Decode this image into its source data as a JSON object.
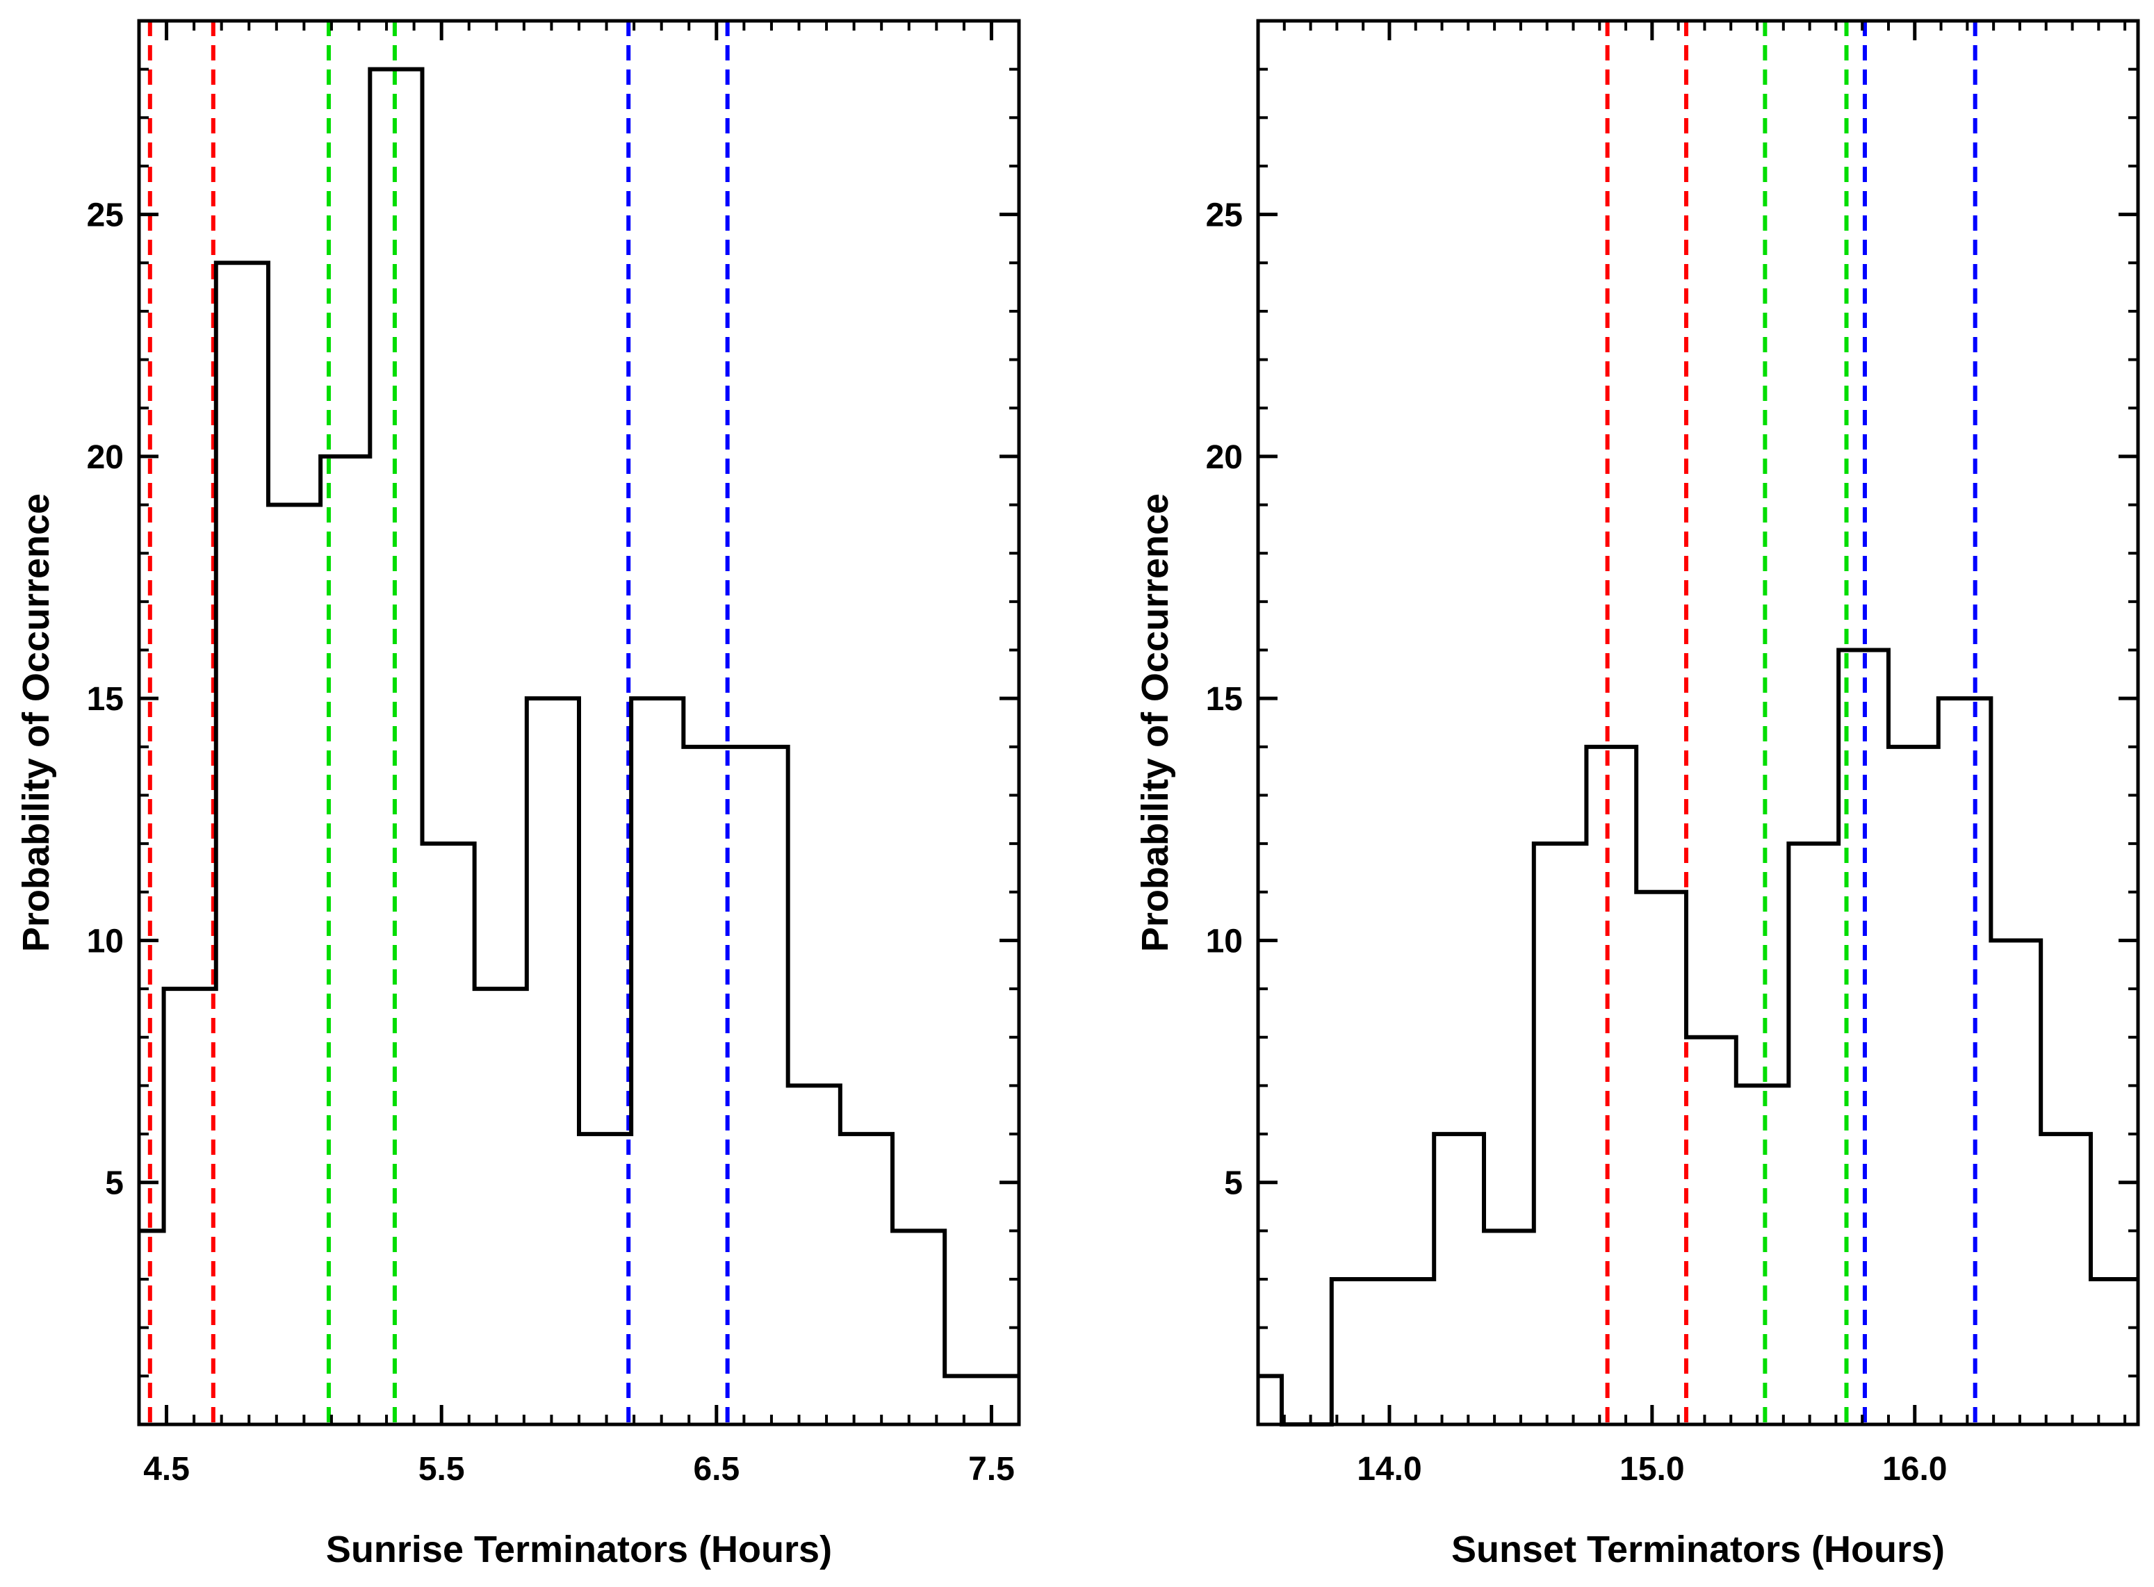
{
  "chart_data": [
    {
      "type": "histogram",
      "name": "sunrise",
      "xlabel": "Sunrise Terminators (Hours)",
      "ylabel": "Probability of Occurrence",
      "xlim": [
        4.4,
        7.6
      ],
      "ylim": [
        0,
        29
      ],
      "xticks": [
        {
          "value": 4.5,
          "label": "4.5"
        },
        {
          "value": 5.5,
          "label": "5.5"
        },
        {
          "value": 6.5,
          "label": "6.5"
        },
        {
          "value": 7.5,
          "label": "7.5"
        }
      ],
      "yticks": [
        {
          "value": 5,
          "label": "5"
        },
        {
          "value": 10,
          "label": "10"
        },
        {
          "value": 15,
          "label": "15"
        },
        {
          "value": 20,
          "label": "20"
        },
        {
          "value": 25,
          "label": "25"
        }
      ],
      "bin_edges": [
        4.4,
        4.49,
        4.68,
        4.87,
        5.06,
        5.24,
        5.43,
        5.62,
        5.81,
        6.0,
        6.19,
        6.38,
        6.57,
        6.76,
        6.95,
        7.14,
        7.33,
        7.6
      ],
      "values": [
        4,
        9,
        24,
        19,
        20,
        28,
        12,
        9,
        15,
        6,
        15,
        14,
        14,
        7,
        6,
        4,
        1
      ],
      "vlines": [
        {
          "x": 4.44,
          "color": "#ff0000"
        },
        {
          "x": 4.67,
          "color": "#ff0000"
        },
        {
          "x": 5.09,
          "color": "#00dd00"
        },
        {
          "x": 5.33,
          "color": "#00dd00"
        },
        {
          "x": 6.18,
          "color": "#0000ff"
        },
        {
          "x": 6.54,
          "color": "#0000ff"
        }
      ]
    },
    {
      "type": "histogram",
      "name": "sunset",
      "xlabel": "Sunset Terminators (Hours)",
      "ylabel": "Probability of Occurrence",
      "xlim": [
        13.5,
        16.85
      ],
      "ylim": [
        0,
        29
      ],
      "xticks": [
        {
          "value": 14.0,
          "label": "14.0"
        },
        {
          "value": 15.0,
          "label": "15.0"
        },
        {
          "value": 16.0,
          "label": "16.0"
        }
      ],
      "yticks": [
        {
          "value": 5,
          "label": "5"
        },
        {
          "value": 10,
          "label": "10"
        },
        {
          "value": 15,
          "label": "15"
        },
        {
          "value": 20,
          "label": "20"
        },
        {
          "value": 25,
          "label": "25"
        }
      ],
      "bin_edges": [
        13.5,
        13.59,
        13.78,
        13.97,
        14.17,
        14.36,
        14.55,
        14.75,
        14.94,
        15.13,
        15.32,
        15.52,
        15.71,
        15.9,
        16.09,
        16.29,
        16.48,
        16.67,
        16.85
      ],
      "values": [
        1,
        0,
        3,
        3,
        6,
        4,
        12,
        14,
        11,
        8,
        7,
        12,
        16,
        14,
        15,
        10,
        6,
        3
      ],
      "vlines": [
        {
          "x": 14.83,
          "color": "#ff0000"
        },
        {
          "x": 15.13,
          "color": "#ff0000"
        },
        {
          "x": 15.43,
          "color": "#00dd00"
        },
        {
          "x": 15.74,
          "color": "#00dd00"
        },
        {
          "x": 15.81,
          "color": "#0000ff"
        },
        {
          "x": 16.23,
          "color": "#0000ff"
        }
      ]
    }
  ]
}
